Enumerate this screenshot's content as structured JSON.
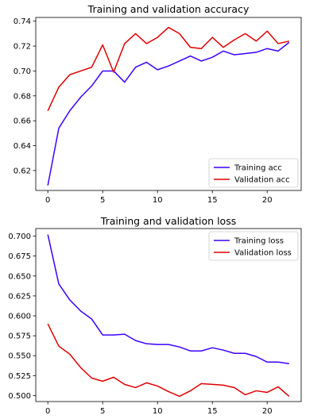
{
  "chart_data": [
    {
      "type": "line",
      "title": "Training and validation accuracy",
      "xlabel": "",
      "ylabel": "",
      "xlim": [
        -1.1,
        23.1
      ],
      "ylim": [
        0.604,
        0.743
      ],
      "xticks": [
        0,
        5,
        10,
        15,
        20
      ],
      "xtick_labels": [
        "0",
        "5",
        "10",
        "15",
        "20"
      ],
      "yticks": [
        0.62,
        0.64,
        0.66,
        0.68,
        0.7,
        0.72,
        0.74
      ],
      "ytick_labels": [
        "0.62",
        "0.64",
        "0.66",
        "0.68",
        "0.70",
        "0.72",
        "0.74"
      ],
      "grid": false,
      "legend_position": "lower-right",
      "x": [
        0,
        1,
        2,
        3,
        4,
        5,
        6,
        7,
        8,
        9,
        10,
        11,
        12,
        13,
        14,
        15,
        16,
        17,
        18,
        19,
        20,
        21,
        22
      ],
      "series": [
        {
          "name": "Training acc",
          "color": "#3b00ff",
          "values": [
            0.608,
            0.654,
            0.668,
            0.679,
            0.688,
            0.7,
            0.7,
            0.691,
            0.703,
            0.707,
            0.701,
            0.704,
            0.708,
            0.712,
            0.708,
            0.711,
            0.716,
            0.713,
            0.714,
            0.715,
            0.718,
            0.716,
            0.723
          ]
        },
        {
          "name": "Validation acc",
          "color": "#e00000",
          "values": [
            0.668,
            0.687,
            0.697,
            0.7,
            0.703,
            0.721,
            0.699,
            0.722,
            0.73,
            0.722,
            0.727,
            0.735,
            0.73,
            0.719,
            0.718,
            0.727,
            0.719,
            0.725,
            0.73,
            0.724,
            0.732,
            0.722,
            0.724
          ]
        }
      ]
    },
    {
      "type": "line",
      "title": "Training and validation loss",
      "xlabel": "",
      "ylabel": "",
      "xlim": [
        -1.1,
        23.1
      ],
      "ylim": [
        0.4925,
        0.7095
      ],
      "xticks": [
        0,
        5,
        10,
        15,
        20
      ],
      "xtick_labels": [
        "0",
        "5",
        "10",
        "15",
        "20"
      ],
      "yticks": [
        0.5,
        0.525,
        0.55,
        0.575,
        0.6,
        0.625,
        0.65,
        0.675,
        0.7
      ],
      "ytick_labels": [
        "0.500",
        "0.525",
        "0.550",
        "0.575",
        "0.600",
        "0.625",
        "0.650",
        "0.675",
        "0.700"
      ],
      "grid": false,
      "legend_position": "upper-right",
      "x": [
        0,
        1,
        2,
        3,
        4,
        5,
        6,
        7,
        8,
        9,
        10,
        11,
        12,
        13,
        14,
        15,
        16,
        17,
        18,
        19,
        20,
        21,
        22
      ],
      "series": [
        {
          "name": "Training loss",
          "color": "#3b00ff",
          "values": [
            0.702,
            0.64,
            0.62,
            0.606,
            0.596,
            0.576,
            0.576,
            0.577,
            0.569,
            0.565,
            0.564,
            0.564,
            0.561,
            0.556,
            0.556,
            0.56,
            0.557,
            0.553,
            0.553,
            0.549,
            0.542,
            0.542,
            0.54
          ]
        },
        {
          "name": "Validation loss",
          "color": "#e00000",
          "values": [
            0.59,
            0.562,
            0.552,
            0.535,
            0.522,
            0.518,
            0.523,
            0.514,
            0.51,
            0.516,
            0.512,
            0.505,
            0.499,
            0.506,
            0.515,
            0.514,
            0.513,
            0.51,
            0.501,
            0.506,
            0.504,
            0.511,
            0.499
          ]
        }
      ]
    }
  ]
}
